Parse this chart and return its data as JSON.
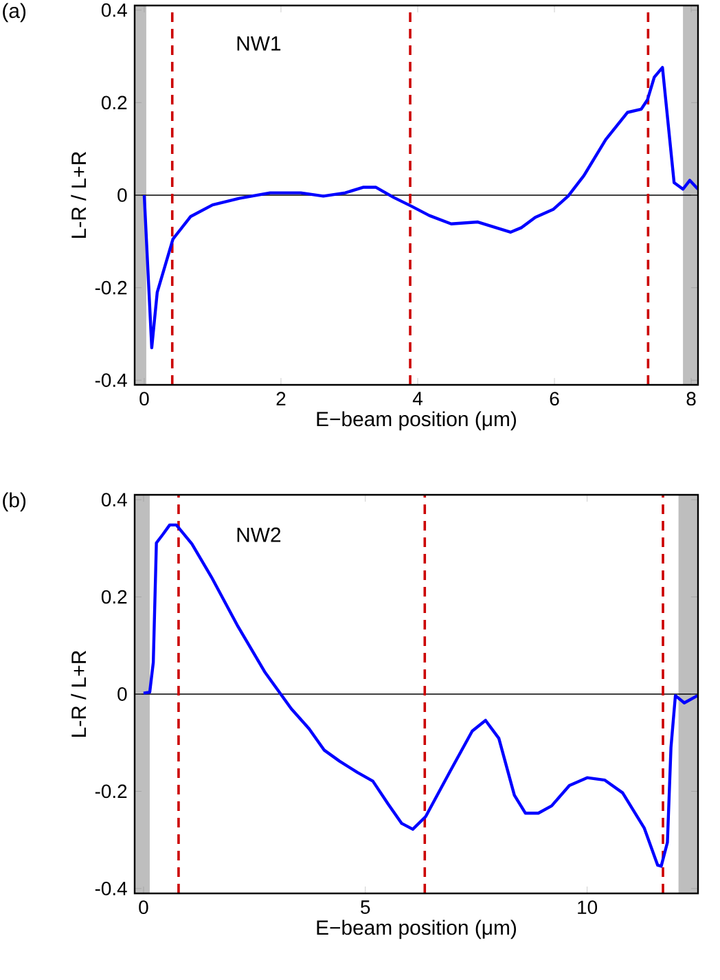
{
  "chart_data": [
    {
      "type": "line",
      "title": "NW1",
      "annotations": [
        "(a)"
      ],
      "xlabel": "E−beam position (μm)",
      "ylabel": "L-R / L+R",
      "color": "#0000ff",
      "x": [
        0,
        0.11,
        0.19,
        0.42,
        0.68,
        1.0,
        1.39,
        1.84,
        2.29,
        2.62,
        2.94,
        3.2,
        3.39,
        3.65,
        3.91,
        4.17,
        4.49,
        4.88,
        5.14,
        5.36,
        5.52,
        5.72,
        5.98,
        6.2,
        6.43,
        6.75,
        7.07,
        7.27,
        7.36,
        7.46,
        7.58,
        7.75,
        7.88,
        7.98,
        8.1
      ],
      "values": [
        0,
        -0.33,
        -0.21,
        -0.095,
        -0.046,
        -0.021,
        -0.007,
        0.005,
        0.005,
        -0.002,
        0.005,
        0.017,
        0.017,
        -0.005,
        -0.024,
        -0.044,
        -0.062,
        -0.058,
        -0.07,
        -0.08,
        -0.07,
        -0.048,
        -0.031,
        -0.002,
        0.042,
        0.12,
        0.179,
        0.186,
        0.206,
        0.255,
        0.276,
        0.027,
        0.013,
        0.032,
        0.013
      ],
      "xlim": [
        -0.14,
        8.1
      ],
      "ylim": [
        -0.41,
        0.41
      ],
      "xticks": [
        0,
        2,
        4,
        6,
        8
      ],
      "yticks": [
        -0.4,
        -0.2,
        0,
        0.2,
        0.4
      ],
      "ref_lines": [
        {
          "axis": "y",
          "value": 0,
          "color": "#000000",
          "line_style": "solid"
        },
        {
          "axis": "x",
          "value": 0.41,
          "color": "#cc0000",
          "line_style": "dashed"
        },
        {
          "axis": "x",
          "value": 3.89,
          "color": "#cc0000",
          "line_style": "dashed"
        },
        {
          "axis": "x",
          "value": 7.37,
          "color": "#cc0000",
          "line_style": "dashed"
        }
      ],
      "bands": [
        {
          "axis": "x",
          "from": -0.14,
          "to": 0.03,
          "color": "#bebebe"
        },
        {
          "axis": "x",
          "from": 7.88,
          "to": 8.1,
          "color": "#bebebe"
        }
      ]
    },
    {
      "type": "line",
      "title": "NW2",
      "annotations": [
        "(b)"
      ],
      "xlabel": "E−beam position (μm)",
      "ylabel": "L-R / L+R",
      "color": "#0000ff",
      "x": [
        0,
        0.14,
        0.22,
        0.29,
        0.44,
        0.59,
        0.74,
        1.09,
        1.53,
        2.13,
        2.73,
        3.33,
        3.73,
        4.07,
        4.42,
        4.82,
        5.17,
        5.52,
        5.82,
        6.07,
        6.36,
        6.91,
        7.41,
        7.71,
        8.01,
        8.36,
        8.61,
        8.9,
        9.2,
        9.6,
        10.0,
        10.4,
        10.8,
        11.29,
        11.59,
        11.67,
        11.81,
        11.89,
        11.99,
        12.19,
        12.49
      ],
      "values": [
        0.002,
        0.004,
        0.065,
        0.311,
        0.329,
        0.348,
        0.348,
        0.309,
        0.241,
        0.139,
        0.046,
        -0.03,
        -0.071,
        -0.115,
        -0.138,
        -0.161,
        -0.179,
        -0.227,
        -0.266,
        -0.278,
        -0.252,
        -0.159,
        -0.076,
        -0.054,
        -0.091,
        -0.208,
        -0.245,
        -0.245,
        -0.23,
        -0.188,
        -0.172,
        -0.177,
        -0.203,
        -0.276,
        -0.352,
        -0.354,
        -0.305,
        -0.11,
        -0.003,
        -0.018,
        -0.003
      ],
      "xlim": [
        -0.2,
        12.5
      ],
      "ylim": [
        -0.41,
        0.41
      ],
      "xticks": [
        0,
        5,
        10
      ],
      "yticks": [
        -0.4,
        -0.2,
        0,
        0.2,
        0.4
      ],
      "ref_lines": [
        {
          "axis": "y",
          "value": 0,
          "color": "#000000",
          "line_style": "solid"
        },
        {
          "axis": "x",
          "value": 0.79,
          "color": "#cc0000",
          "line_style": "dashed"
        },
        {
          "axis": "x",
          "value": 6.34,
          "color": "#cc0000",
          "line_style": "dashed"
        },
        {
          "axis": "x",
          "value": 11.71,
          "color": "#cc0000",
          "line_style": "dashed"
        }
      ],
      "bands": [
        {
          "axis": "x",
          "from": -0.2,
          "to": 0.14,
          "color": "#bebebe"
        },
        {
          "axis": "x",
          "from": 12.06,
          "to": 12.5,
          "color": "#bebebe"
        }
      ]
    }
  ]
}
